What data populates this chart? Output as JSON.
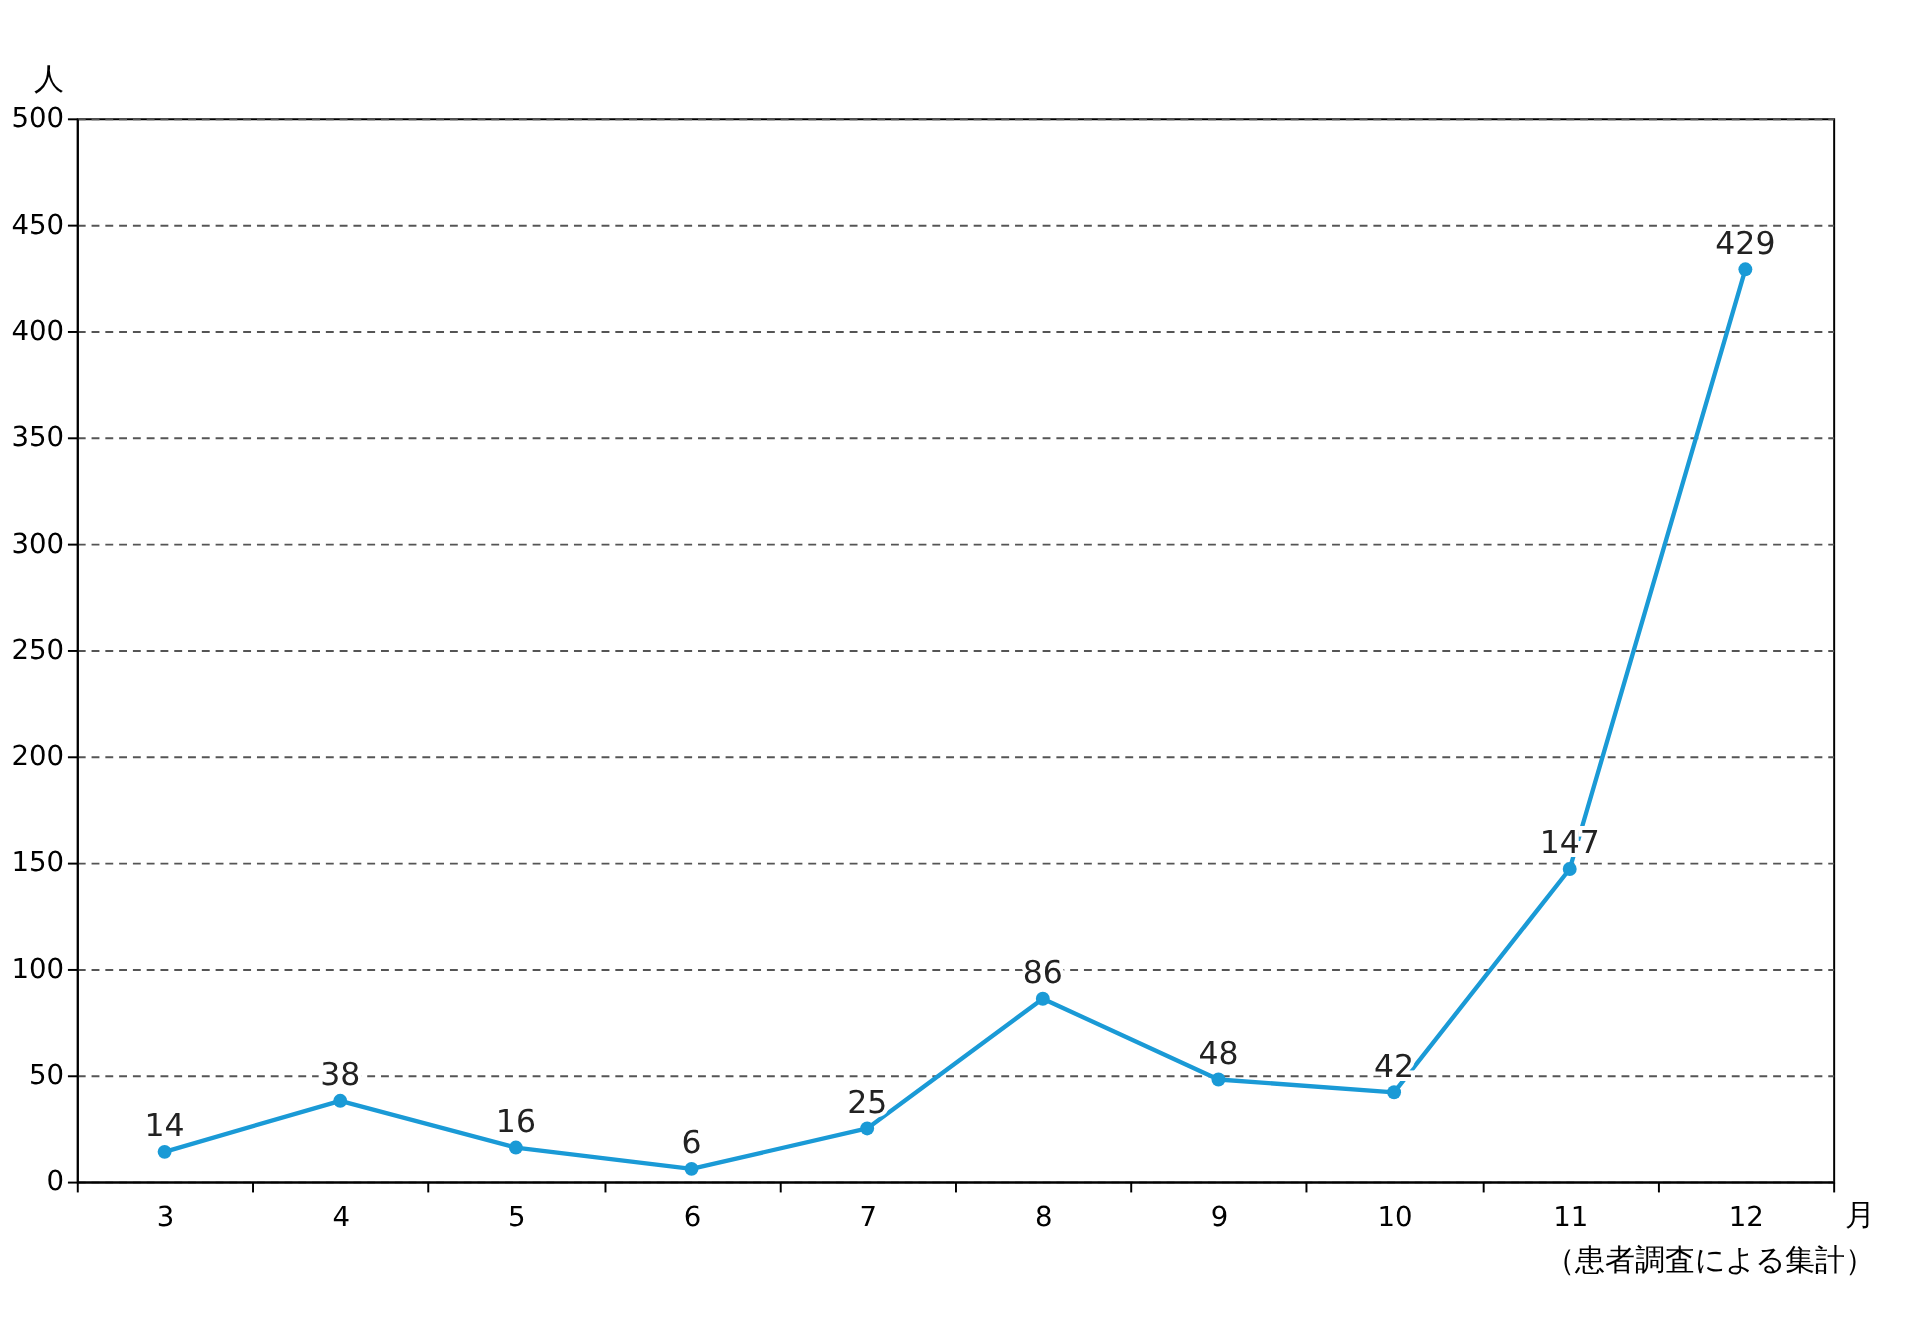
{
  "chart_data": {
    "type": "line",
    "categories": [
      "3",
      "4",
      "5",
      "6",
      "7",
      "8",
      "9",
      "10",
      "11",
      "12"
    ],
    "series": [
      {
        "color": "#1a9ad6",
        "values": [
          14,
          38,
          16,
          6,
          25,
          86,
          48,
          42,
          147,
          429
        ]
      }
    ],
    "ylim": [
      0,
      500
    ],
    "yticks": [
      0,
      50,
      100,
      150,
      200,
      250,
      300,
      350,
      400,
      450,
      500
    ],
    "ylabel": "人",
    "xlabel": "月",
    "grid": "y",
    "marker": "circle",
    "data_labels": true,
    "annotations": [
      "（患者調査による集計）"
    ]
  }
}
